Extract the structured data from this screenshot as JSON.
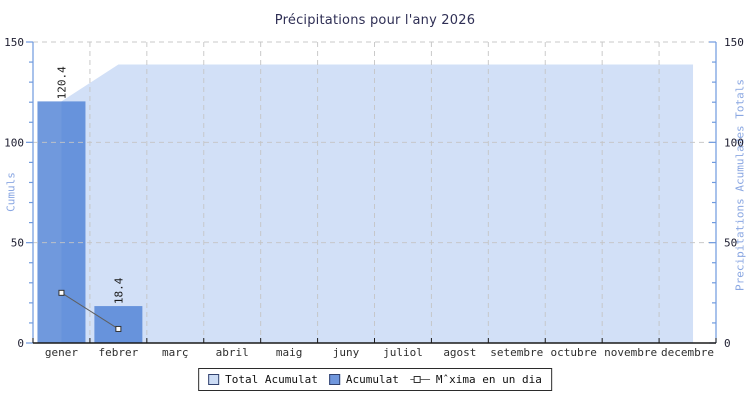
{
  "title": "Précipitations pour l'any 2026",
  "y_axis_left": {
    "label": "Cumuls",
    "ticks": [
      0,
      50,
      100,
      150
    ]
  },
  "y_axis_right": {
    "label": "Precipitations Acumulades Totals",
    "ticks": [
      0,
      50,
      100,
      150
    ]
  },
  "x_axis": {
    "months": [
      "gener",
      "febrer",
      "març",
      "abril",
      "maig",
      "juny",
      "juliol",
      "agost",
      "setembre",
      "octubre",
      "novembre",
      "decembre"
    ]
  },
  "chart_data": {
    "type": "composite",
    "title": "Précipitations pour l'any 2026",
    "categories": [
      "gener",
      "febrer",
      "març",
      "abril",
      "maig",
      "juny",
      "juliol",
      "agost",
      "setembre",
      "octubre",
      "novembre",
      "decembre"
    ],
    "ylim": [
      0,
      150
    ],
    "yticks": [
      0,
      50,
      100,
      150
    ],
    "minor_tick_step": 10,
    "grid": "dashed",
    "legend_position": "bottom-center",
    "series": [
      {
        "name": "Total Acumulat",
        "type": "area",
        "values": [
          120.4,
          138.8,
          138.8,
          138.8,
          138.8,
          138.8,
          138.8,
          138.8,
          138.8,
          138.8,
          138.8,
          138.8
        ]
      },
      {
        "name": "Acumulat",
        "type": "bar",
        "values": [
          120.4,
          18.4,
          null,
          null,
          null,
          null,
          null,
          null,
          null,
          null,
          null,
          null
        ],
        "point_labels": [
          "120.4",
          "18.4"
        ]
      },
      {
        "name": "Mˆxima en un dia",
        "type": "line",
        "marker": "square",
        "values": [
          25,
          7,
          null,
          null,
          null,
          null,
          null,
          null,
          null,
          null,
          null,
          null
        ]
      }
    ]
  },
  "legend": {
    "items": [
      {
        "label": "Total Acumulat",
        "swatch": "area"
      },
      {
        "label": "Acumulat",
        "swatch": "bar"
      },
      {
        "label": "Mˆxima en un dia",
        "swatch": "line-marker"
      }
    ]
  },
  "colors": {
    "area_fill": "#d2e0f7",
    "bar_fill": "rgba(76,127,213,0.8)",
    "bar_solid": "#6e97da",
    "legend_area_swatch": "#ccdcf5",
    "line": "#5f5f5f",
    "marker_fill": "#ffffff",
    "marker_stroke": "#333333",
    "axis_blue": "#6f9ade",
    "axis_black": "#1a1a1a",
    "grid": "#c4c4c4",
    "title_text": "#2f2f55",
    "ylabel_text": "#8aa7e2",
    "tick_text": "#1d1d30",
    "month_text": "#2e2e2e",
    "value_label_text": "#1a1a1a"
  }
}
